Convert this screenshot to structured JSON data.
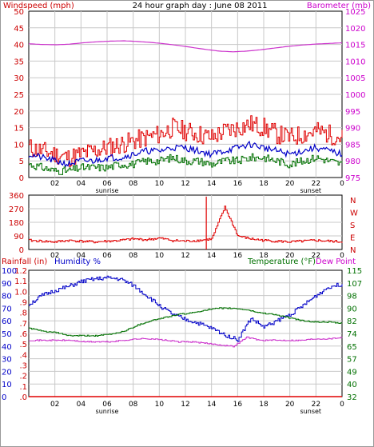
{
  "chart_data": [
    {
      "type": "line",
      "panel": "wind-pressure",
      "title": "24 hour graph day : June 08 2011",
      "ylabel_left": "Windspeed (mph)",
      "ylabel_right": "Barometer (mb)",
      "left_ticks": [
        "0",
        "5",
        "10",
        "15",
        "20",
        "25",
        "30",
        "35",
        "40",
        "45",
        "50"
      ],
      "right_ticks": [
        "975",
        "980",
        "985",
        "990",
        "995",
        "1000",
        "1005",
        "1010",
        "1015",
        "1020",
        "1025"
      ],
      "ylim_left": [
        0,
        50
      ],
      "ylim_right": [
        975,
        1025
      ],
      "x_ticks": [
        "02",
        "04",
        "06",
        "08",
        "10",
        "12",
        "14",
        "16",
        "18",
        "20",
        "22"
      ],
      "x_edge_tick": "0",
      "sunrise_label": "sunrise",
      "sunset_label": "sunset",
      "grid": true,
      "series": [
        {
          "axis": "right",
          "color": "#cc33cc",
          "values": [
            1015.2,
            1015.0,
            1014.9,
            1015.1,
            1015.5,
            1015.8,
            1016.0,
            1016.1,
            1015.9,
            1015.6,
            1015.2,
            1014.7,
            1014.1,
            1013.5,
            1013.0,
            1012.8,
            1013.0,
            1013.4,
            1013.9,
            1014.4,
            1014.8,
            1015.1,
            1015.3,
            1015.5
          ]
        },
        {
          "axis": "left",
          "color": "#e00000",
          "values": [
            9,
            8,
            7,
            6,
            7,
            8,
            9,
            10,
            11,
            12,
            13,
            15,
            14,
            13,
            12,
            14,
            15,
            16,
            15,
            13,
            12,
            13,
            14,
            13,
            12
          ]
        },
        {
          "axis": "left",
          "color": "#0000c8",
          "values": [
            7,
            6,
            5,
            4,
            5,
            5,
            6,
            6,
            7,
            8,
            8,
            9,
            9,
            8,
            7,
            8,
            9,
            10,
            9,
            8,
            7,
            8,
            9,
            8,
            7
          ]
        },
        {
          "axis": "left",
          "color": "#007000",
          "values": [
            4,
            3,
            2,
            2,
            3,
            3,
            3,
            4,
            4,
            5,
            5,
            6,
            5,
            5,
            4,
            5,
            5,
            6,
            6,
            5,
            4,
            5,
            6,
            5,
            4
          ]
        }
      ]
    },
    {
      "type": "line",
      "panel": "wind-direction",
      "left_ticks": [
        "0",
        "90",
        "180",
        "270",
        "360"
      ],
      "right_ticks": [
        "N",
        "E",
        "S",
        "W",
        "N"
      ],
      "ylim_left": [
        0,
        360
      ],
      "series": [
        {
          "color": "#e00000",
          "values": [
            60,
            55,
            50,
            60,
            55,
            50,
            55,
            60,
            70,
            65,
            75,
            60,
            55,
            60,
            70,
            280,
            90,
            70,
            60,
            55,
            50,
            55,
            60,
            55,
            50
          ]
        }
      ]
    },
    {
      "type": "line",
      "panel": "rain-humidity-temperature",
      "label_rain": "Rainfall (in)",
      "label_humidity": "Humidity %",
      "label_temperature": "Temperature (°F)",
      "label_dewpoint": "Dew Point",
      "rain_ticks": [
        ".0",
        ".1",
        ".2",
        ".3",
        ".4",
        ".5",
        ".6",
        ".7",
        ".8",
        ".9",
        "1.0",
        "1.1",
        "1.2"
      ],
      "humidity_ticks": [
        "0",
        "10",
        "20",
        "30",
        "40",
        "50",
        "60",
        "70",
        "80",
        "90",
        "100"
      ],
      "temp_ticks": [
        "32",
        "40",
        "49",
        "57",
        "65",
        "74",
        "82",
        "90",
        "98",
        "107",
        "115"
      ],
      "ylim_humidity": [
        0,
        100
      ],
      "ylim_temperature": [
        32,
        115
      ],
      "series": [
        {
          "name": "Humidity %",
          "axis": "humidity",
          "color": "#0000c8",
          "values": [
            73,
            80,
            84,
            87,
            91,
            93,
            94,
            93,
            88,
            80,
            72,
            65,
            61,
            58,
            54,
            49,
            45,
            62,
            55,
            60,
            65,
            72,
            80,
            87,
            89
          ]
        },
        {
          "name": "Temperature (°F)",
          "axis": "temperature",
          "color": "#007000",
          "values": [
            77,
            75,
            74,
            72,
            72,
            72,
            73,
            75,
            79,
            82,
            84,
            86,
            87,
            89,
            90,
            90,
            89,
            87,
            86,
            84,
            82,
            81,
            81,
            80
          ]
        },
        {
          "name": "Dew Point",
          "axis": "temperature",
          "color": "#cc33cc",
          "values": [
            69,
            69,
            69,
            69,
            68,
            68,
            68,
            69,
            70,
            70,
            69,
            68,
            68,
            67,
            66,
            65,
            71,
            69,
            69,
            69,
            69,
            70,
            70,
            71
          ]
        },
        {
          "name": "Rainfall (in)",
          "axis": "rain",
          "color": "#e00000",
          "values": [
            0,
            0,
            0,
            0,
            0,
            0,
            0,
            0,
            0,
            0,
            0,
            0,
            0,
            0,
            0,
            0,
            0,
            0,
            0,
            0,
            0,
            0,
            0,
            0
          ]
        }
      ]
    }
  ]
}
